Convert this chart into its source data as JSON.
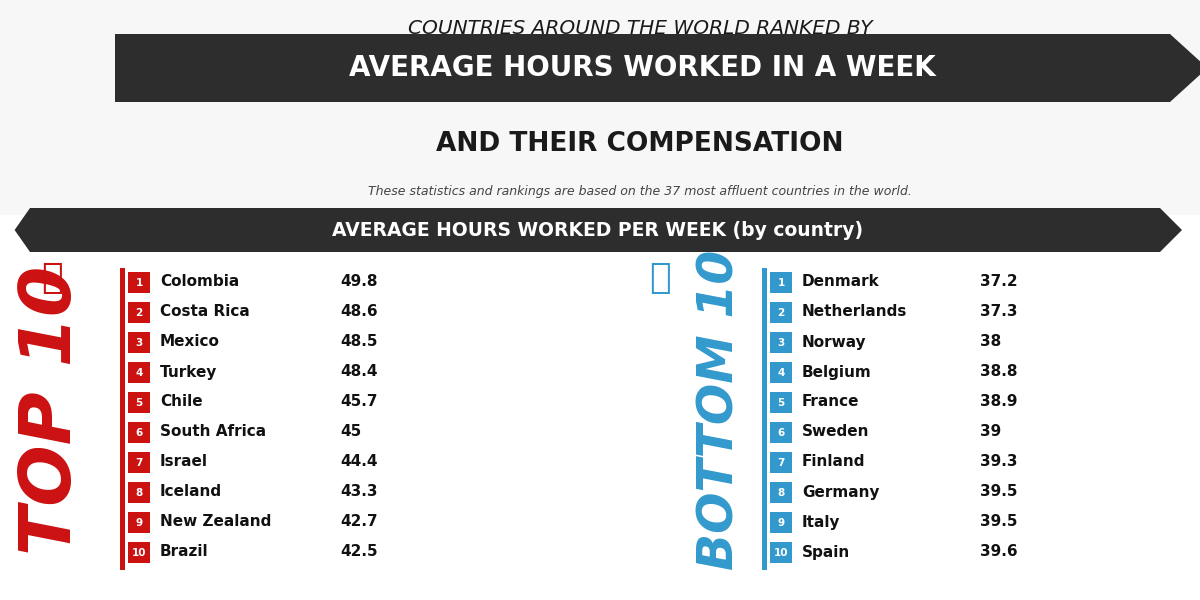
{
  "title_line1": "COUNTRIES AROUND THE WORLD RANKED BY",
  "title_line2": "AVERAGE HOURS WORKED IN A WEEK",
  "title_line3": "AND THEIR COMPENSATION",
  "subtitle": "These statistics and rankings are based on the 37 most affluent countries in the world.",
  "section_header": "AVERAGE HOURS WORKED PER WEEK (by country)",
  "top10_label": "TOP 10",
  "bottom10_label": "BOTTOM 10",
  "top10": [
    {
      "rank": 1,
      "country": "Colombia",
      "hours": 49.8
    },
    {
      "rank": 2,
      "country": "Costa Rica",
      "hours": 48.6
    },
    {
      "rank": 3,
      "country": "Mexico",
      "hours": 48.5
    },
    {
      "rank": 4,
      "country": "Turkey",
      "hours": 48.4
    },
    {
      "rank": 5,
      "country": "Chile",
      "hours": 45.7
    },
    {
      "rank": 6,
      "country": "South Africa",
      "hours": 45.0
    },
    {
      "rank": 7,
      "country": "Israel",
      "hours": 44.4
    },
    {
      "rank": 8,
      "country": "Iceland",
      "hours": 43.3
    },
    {
      "rank": 9,
      "country": "New Zealand",
      "hours": 42.7
    },
    {
      "rank": 10,
      "country": "Brazil",
      "hours": 42.5
    }
  ],
  "bottom10": [
    {
      "rank": 1,
      "country": "Denmark",
      "hours": 37.2
    },
    {
      "rank": 2,
      "country": "Netherlands",
      "hours": 37.3
    },
    {
      "rank": 3,
      "country": "Norway",
      "hours": 38.0
    },
    {
      "rank": 4,
      "country": "Belgium",
      "hours": 38.8
    },
    {
      "rank": 5,
      "country": "France",
      "hours": 38.9
    },
    {
      "rank": 6,
      "country": "Sweden",
      "hours": 39.0
    },
    {
      "rank": 7,
      "country": "Finland",
      "hours": 39.3
    },
    {
      "rank": 8,
      "country": "Germany",
      "hours": 39.5
    },
    {
      "rank": 9,
      "country": "Italy",
      "hours": 39.5
    },
    {
      "rank": 10,
      "country": "Spain",
      "hours": 39.6
    }
  ],
  "bg_color": "#ffffff",
  "header_bg": "#2d2d2d",
  "red_color": "#cc1111",
  "blue_color": "#3399cc",
  "title_color": "#1a1a1a",
  "banner_bg": "#2d2d2d",
  "gray_bg": "#f0f0f0"
}
